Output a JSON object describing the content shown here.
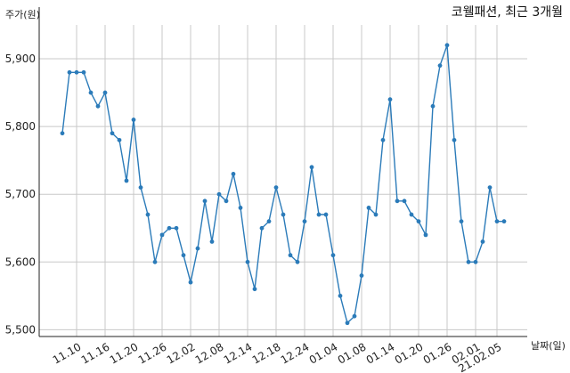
{
  "chart_data": {
    "type": "line",
    "title": "코웰패션, 최근 3개월",
    "ylabel": "주가(원)",
    "xlabel": "날짜(일)",
    "ylim": [
      5490,
      5950
    ],
    "y_ticks": [
      5500,
      5600,
      5700,
      5800,
      5900
    ],
    "y_tick_labels": [
      "5,500",
      "5,600",
      "5,700",
      "5,800",
      "5,900"
    ],
    "x_tick_labels": [
      {
        "label": "11.10",
        "index": 2
      },
      {
        "label": "11.16",
        "index": 6
      },
      {
        "label": "11.20",
        "index": 10
      },
      {
        "label": "11.26",
        "index": 14
      },
      {
        "label": "12.02",
        "index": 18
      },
      {
        "label": "12.08",
        "index": 22
      },
      {
        "label": "12.14",
        "index": 26
      },
      {
        "label": "12.18",
        "index": 30
      },
      {
        "label": "12.24",
        "index": 34
      },
      {
        "label": "01.04",
        "index": 38
      },
      {
        "label": "01.08",
        "index": 42
      },
      {
        "label": "01.14",
        "index": 46
      },
      {
        "label": "01.20",
        "index": 50
      },
      {
        "label": "01.26",
        "index": 54
      },
      {
        "label": "02.01",
        "index": 58
      },
      {
        "label": "21.02.05",
        "index": 61
      }
    ],
    "grid": true,
    "series": [
      {
        "name": "",
        "color": "#2b7bb9",
        "values": [
          5790,
          5880,
          5880,
          5880,
          5850,
          5830,
          5850,
          5790,
          5780,
          5720,
          5810,
          5710,
          5670,
          5600,
          5640,
          5650,
          5650,
          5610,
          5570,
          5620,
          5690,
          5630,
          5700,
          5690,
          5730,
          5680,
          5600,
          5560,
          5650,
          5660,
          5710,
          5670,
          5610,
          5600,
          5660,
          5740,
          5670,
          5670,
          5610,
          5550,
          5510,
          5520,
          5580,
          5680,
          5670,
          5780,
          5840,
          5690,
          5690,
          5670,
          5660,
          5640,
          5830,
          5890,
          5920,
          5780,
          5660,
          5600,
          5600,
          5630,
          5710,
          5660,
          5660
        ]
      }
    ]
  }
}
